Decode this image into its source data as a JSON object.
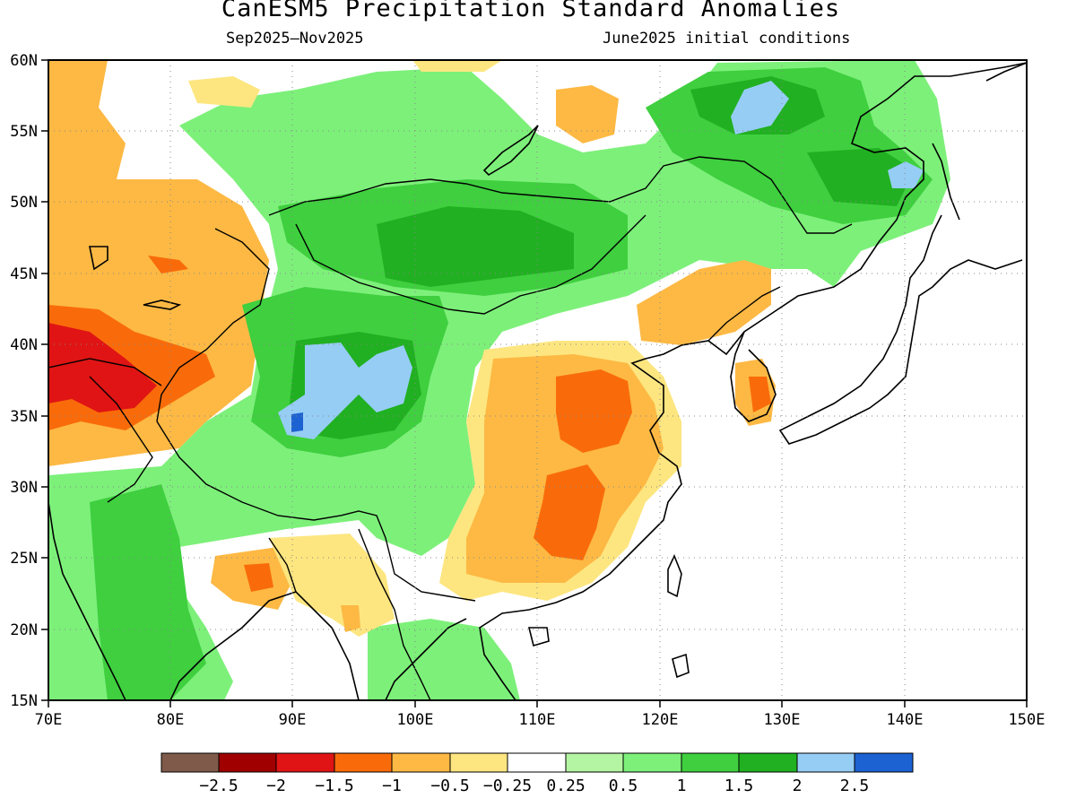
{
  "header": {
    "title": "CanESM5 Precipitation Standard Anomalies",
    "period": "Sep2025–Nov2025",
    "init": "June2025 initial conditions"
  },
  "axes": {
    "lon_ticks": [
      "70E",
      "80E",
      "90E",
      "100E",
      "110E",
      "120E",
      "130E",
      "140E",
      "150E"
    ],
    "lat_ticks": [
      "60N",
      "55N",
      "50N",
      "45N",
      "40N",
      "35N",
      "30N",
      "25N",
      "20N",
      "15N"
    ]
  },
  "colorbar": {
    "colors": [
      "#7f5a4a",
      "#a00000",
      "#e01414",
      "#f96b0a",
      "#fdb944",
      "#fde680",
      "#ffffff",
      "#b3f5a2",
      "#7df07a",
      "#3fcf3f",
      "#21b021",
      "#96cdf5",
      "#1c62d2"
    ],
    "labels": [
      "−2.5",
      "−2",
      "−1.5",
      "−1",
      "−0.5",
      "−0.25",
      "0.25",
      "0.5",
      "1",
      "1.5",
      "2",
      "2.5"
    ]
  },
  "map": {
    "lon_range": [
      70,
      150
    ],
    "lat_range": [
      15,
      60
    ],
    "ocean_color": "#ffffff"
  }
}
